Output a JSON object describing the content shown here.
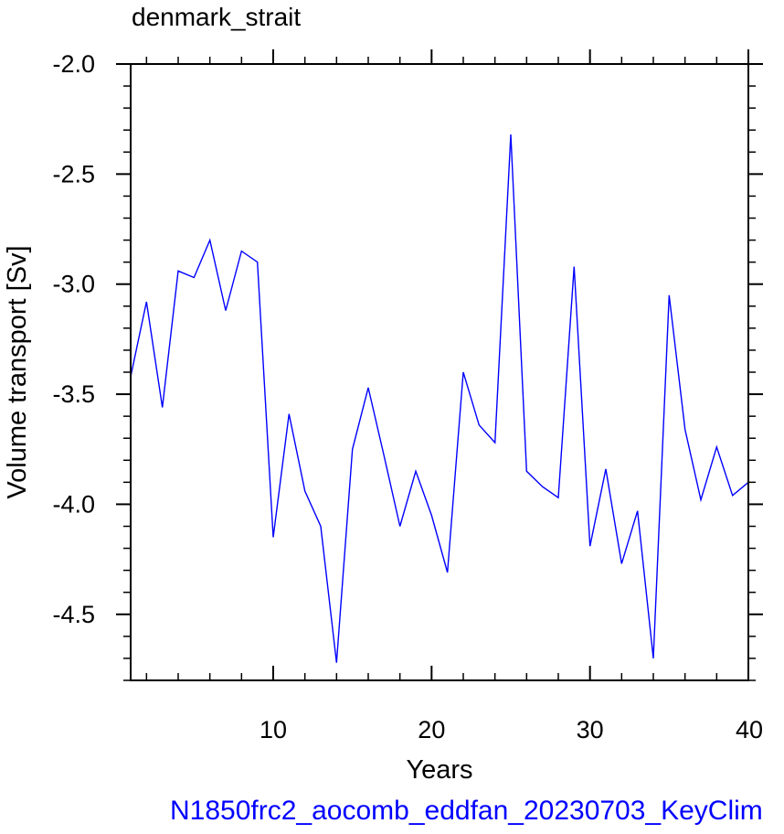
{
  "chart_data": {
    "type": "line",
    "title": "denmark_strait",
    "xlabel": "Years",
    "ylabel": "Volume transport [Sv]",
    "xlim": [
      1,
      40
    ],
    "ylim": [
      -4.8,
      -2.0
    ],
    "x_ticks": [
      10,
      20,
      30,
      40
    ],
    "y_ticks": [
      -2.0,
      -2.5,
      -3.0,
      -3.5,
      -4.0,
      -4.5
    ],
    "x_tick_labels": [
      "10",
      "20",
      "30",
      "40"
    ],
    "y_tick_labels": [
      "-2.0",
      "-2.5",
      "-3.0",
      "-3.5",
      "-4.0",
      "-4.5"
    ],
    "grid": false,
    "line_color": "#0000ff",
    "series": [
      {
        "x": [
          1,
          2,
          3,
          4,
          5,
          6,
          7,
          8,
          9,
          10,
          11,
          12,
          13,
          14,
          15,
          16,
          17,
          18,
          19,
          20,
          21,
          22,
          23,
          24,
          25,
          26,
          27,
          28,
          29,
          30,
          31,
          32,
          33,
          34,
          35,
          36,
          37,
          38,
          39,
          40
        ],
        "y": [
          -3.42,
          -3.08,
          -3.56,
          -2.94,
          -2.97,
          -2.8,
          -3.12,
          -2.85,
          -2.9,
          -4.15,
          -3.59,
          -3.94,
          -4.1,
          -4.72,
          -3.75,
          -3.47,
          -3.78,
          -4.1,
          -3.85,
          -4.05,
          -4.31,
          -3.4,
          -3.64,
          -3.72,
          -2.32,
          -3.85,
          -3.92,
          -3.97,
          -2.92,
          -4.19,
          -3.84,
          -4.27,
          -4.03,
          -4.7,
          -3.05,
          -3.66,
          -3.98,
          -3.74,
          -3.96,
          -3.9
        ]
      }
    ]
  },
  "caption": "N1850frc2_aocomb_eddfan_20230703_KeyClim"
}
